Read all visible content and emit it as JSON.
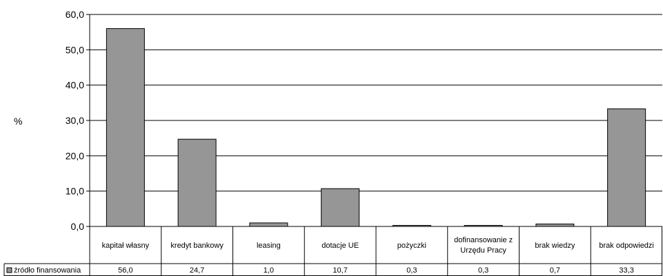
{
  "chart_data": {
    "type": "bar",
    "ylabel": "%",
    "ylim": [
      0,
      60
    ],
    "yticks": [
      "0,0",
      "10,0",
      "20,0",
      "30,0",
      "40,0",
      "50,0",
      "60,0"
    ],
    "grid": true,
    "legend": "bottom-left",
    "categories": [
      "kapitał własny",
      "kredyt bankowy",
      "leasing",
      "dotacje UE",
      "pożyczki",
      "dofinansowanie z Urzędu Pracy",
      "brak wiedzy",
      "brak odpowiedzi"
    ],
    "series": [
      {
        "name": "źródło finansowania",
        "values": [
          56.0,
          24.7,
          1.0,
          10.7,
          0.3,
          0.3,
          0.7,
          33.3
        ],
        "value_labels": [
          "56,0",
          "24,7",
          "1,0",
          "10,7",
          "0,3",
          "0,3",
          "0,7",
          "33,3"
        ],
        "color": "#969696"
      }
    ]
  }
}
